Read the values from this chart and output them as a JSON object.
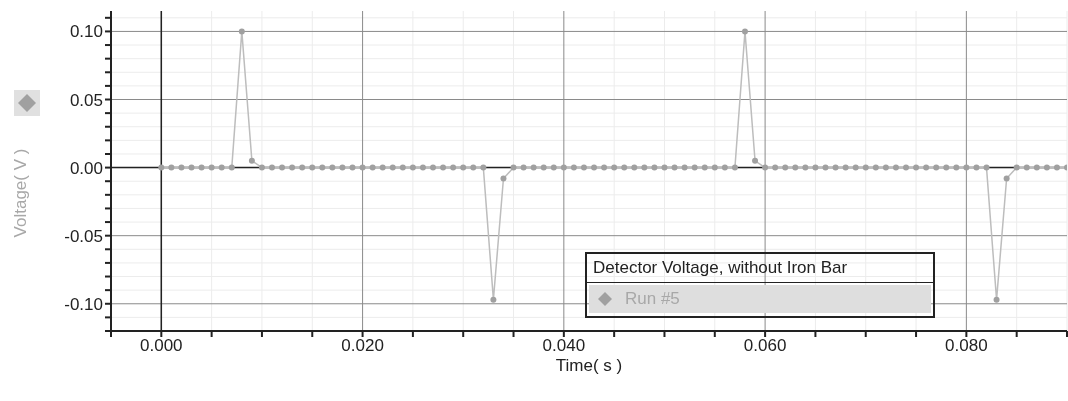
{
  "chart_data": {
    "type": "line",
    "xlabel": "Time( s )",
    "ylabel": "Voltage( V )",
    "legend_title": "Detector Voltage, without Iron Bar",
    "x": [
      0,
      0.001,
      0.002,
      0.003,
      0.004,
      0.005,
      0.006,
      0.007,
      0.008,
      0.009,
      0.01,
      0.011,
      0.012,
      0.013,
      0.014,
      0.015,
      0.016,
      0.017,
      0.018,
      0.019,
      0.02,
      0.021,
      0.022,
      0.023,
      0.024,
      0.025,
      0.026,
      0.027,
      0.028,
      0.029,
      0.03,
      0.031,
      0.032,
      0.033,
      0.034,
      0.035,
      0.036,
      0.037,
      0.038,
      0.039,
      0.04,
      0.041,
      0.042,
      0.043,
      0.044,
      0.045,
      0.046,
      0.047,
      0.048,
      0.049,
      0.05,
      0.051,
      0.052,
      0.053,
      0.054,
      0.055,
      0.056,
      0.057,
      0.058,
      0.059,
      0.06,
      0.061,
      0.062,
      0.063,
      0.064,
      0.065,
      0.066,
      0.067,
      0.068,
      0.069,
      0.07,
      0.071,
      0.072,
      0.073,
      0.074,
      0.075,
      0.076,
      0.077,
      0.078,
      0.079,
      0.08,
      0.081,
      0.082,
      0.083,
      0.084,
      0.085,
      0.086,
      0.087,
      0.088,
      0.089,
      0.09
    ],
    "series": [
      {
        "name": "Run #5",
        "color": "#a0a0a0",
        "values": [
          0,
          0,
          0,
          0,
          0,
          0,
          0,
          0,
          0.1,
          0.005,
          0,
          0,
          0,
          0,
          0,
          0,
          0,
          0,
          0,
          0,
          0,
          0,
          0,
          0,
          0,
          0,
          0,
          0,
          0,
          0,
          0,
          0,
          0,
          -0.097,
          -0.008,
          0,
          0,
          0,
          0,
          0,
          0,
          0,
          0,
          0,
          0,
          0,
          0,
          0,
          0,
          0,
          0,
          0,
          0,
          0,
          0,
          0,
          0,
          0,
          0.1,
          0.005,
          0,
          0,
          0,
          0,
          0,
          0,
          0,
          0,
          0,
          0,
          0,
          0,
          0,
          0,
          0,
          0,
          0,
          0,
          0,
          0,
          0,
          0,
          0,
          -0.097,
          -0.008,
          0,
          0,
          0,
          0,
          0,
          0
        ]
      }
    ],
    "xlim": [
      -0.005,
      0.09
    ],
    "xticks": [
      {
        "value": -0.005,
        "label": null
      },
      {
        "value": 0,
        "label": "0.000"
      },
      {
        "value": 0.005,
        "label": null
      },
      {
        "value": 0.01,
        "label": null
      },
      {
        "value": 0.015,
        "label": null
      },
      {
        "value": 0.02,
        "label": "0.020"
      },
      {
        "value": 0.025,
        "label": null
      },
      {
        "value": 0.03,
        "label": null
      },
      {
        "value": 0.035,
        "label": null
      },
      {
        "value": 0.04,
        "label": "0.040"
      },
      {
        "value": 0.045,
        "label": null
      },
      {
        "value": 0.05,
        "label": null
      },
      {
        "value": 0.055,
        "label": null
      },
      {
        "value": 0.06,
        "label": "0.060"
      },
      {
        "value": 0.065,
        "label": null
      },
      {
        "value": 0.07,
        "label": null
      },
      {
        "value": 0.075,
        "label": null
      },
      {
        "value": 0.08,
        "label": "0.080"
      },
      {
        "value": 0.085,
        "label": null
      },
      {
        "value": 0.09,
        "label": null
      }
    ],
    "ylim": [
      -0.12,
      0.115
    ],
    "yticks": [
      {
        "value": -0.12,
        "label": null
      },
      {
        "value": -0.11,
        "label": null
      },
      {
        "value": -0.1,
        "label": "-0.10"
      },
      {
        "value": -0.09,
        "label": null
      },
      {
        "value": -0.08,
        "label": null
      },
      {
        "value": -0.07,
        "label": null
      },
      {
        "value": -0.06,
        "label": null
      },
      {
        "value": -0.05,
        "label": "-0.05"
      },
      {
        "value": -0.04,
        "label": null
      },
      {
        "value": -0.03,
        "label": null
      },
      {
        "value": -0.02,
        "label": null
      },
      {
        "value": -0.01,
        "label": null
      },
      {
        "value": 0,
        "label": "0.00"
      },
      {
        "value": 0.01,
        "label": null
      },
      {
        "value": 0.02,
        "label": null
      },
      {
        "value": 0.03,
        "label": null
      },
      {
        "value": 0.04,
        "label": null
      },
      {
        "value": 0.05,
        "label": "0.05"
      },
      {
        "value": 0.06,
        "label": null
      },
      {
        "value": 0.07,
        "label": null
      },
      {
        "value": 0.08,
        "label": null
      },
      {
        "value": 0.09,
        "label": null
      },
      {
        "value": 0.1,
        "label": "0.10"
      },
      {
        "value": 0.11,
        "label": null
      }
    ],
    "grid": true,
    "legend": "bottom right",
    "marker": "circle",
    "line_style": "solid"
  }
}
